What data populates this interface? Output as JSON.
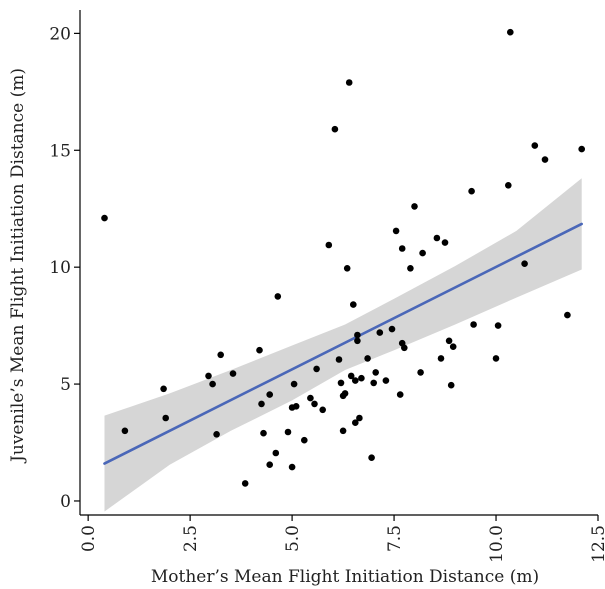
{
  "chart_data": {
    "type": "scatter",
    "xlabel": "Mother’s Mean Flight Initiation Distance (m)",
    "ylabel": "Juvenile’s Mean Flight Initiation Distance (m)",
    "xlim": [
      -0.2,
      12.5
    ],
    "ylim": [
      -0.6,
      21
    ],
    "x_ticks": [
      "0.0",
      "2.5",
      "5.0",
      "7.5",
      "10.0",
      "12.5"
    ],
    "y_ticks": [
      "0",
      "5",
      "10",
      "15",
      "20"
    ],
    "grid": false,
    "colors": {
      "points": "#000000",
      "fit_line": "#4a67b8",
      "ribbon": "#d6d6d6"
    },
    "points": [
      [
        0.4,
        12.1
      ],
      [
        0.9,
        3.0
      ],
      [
        1.85,
        4.8
      ],
      [
        1.9,
        3.55
      ],
      [
        2.95,
        5.35
      ],
      [
        3.05,
        5.0
      ],
      [
        3.15,
        2.85
      ],
      [
        3.25,
        6.25
      ],
      [
        3.55,
        5.45
      ],
      [
        3.85,
        0.75
      ],
      [
        4.2,
        6.45
      ],
      [
        4.25,
        4.15
      ],
      [
        4.3,
        2.9
      ],
      [
        4.45,
        4.55
      ],
      [
        4.45,
        1.55
      ],
      [
        4.6,
        2.05
      ],
      [
        4.65,
        8.75
      ],
      [
        4.9,
        2.95
      ],
      [
        5.0,
        4.0
      ],
      [
        5.0,
        1.45
      ],
      [
        5.05,
        5.0
      ],
      [
        5.1,
        4.05
      ],
      [
        5.3,
        2.6
      ],
      [
        5.45,
        4.4
      ],
      [
        5.55,
        4.15
      ],
      [
        5.6,
        5.65
      ],
      [
        5.75,
        3.9
      ],
      [
        5.9,
        10.95
      ],
      [
        6.05,
        15.9
      ],
      [
        6.15,
        6.05
      ],
      [
        6.2,
        5.05
      ],
      [
        6.25,
        3.0
      ],
      [
        6.25,
        4.5
      ],
      [
        6.3,
        4.6
      ],
      [
        6.35,
        9.95
      ],
      [
        6.4,
        17.9
      ],
      [
        6.45,
        5.35
      ],
      [
        6.5,
        8.4
      ],
      [
        6.55,
        5.15
      ],
      [
        6.55,
        3.35
      ],
      [
        6.6,
        7.1
      ],
      [
        6.6,
        6.85
      ],
      [
        6.65,
        3.55
      ],
      [
        6.7,
        5.25
      ],
      [
        6.85,
        6.1
      ],
      [
        6.95,
        1.85
      ],
      [
        7.0,
        5.05
      ],
      [
        7.05,
        5.5
      ],
      [
        7.15,
        7.2
      ],
      [
        7.3,
        5.15
      ],
      [
        7.45,
        7.35
      ],
      [
        7.55,
        11.55
      ],
      [
        7.65,
        4.55
      ],
      [
        7.7,
        10.8
      ],
      [
        7.7,
        6.75
      ],
      [
        7.75,
        6.55
      ],
      [
        7.9,
        9.95
      ],
      [
        8.0,
        12.6
      ],
      [
        8.15,
        5.5
      ],
      [
        8.2,
        10.6
      ],
      [
        8.55,
        11.25
      ],
      [
        8.65,
        6.1
      ],
      [
        8.75,
        11.05
      ],
      [
        8.85,
        6.85
      ],
      [
        8.9,
        4.95
      ],
      [
        8.95,
        6.6
      ],
      [
        9.4,
        13.25
      ],
      [
        9.45,
        7.55
      ],
      [
        10.0,
        6.1
      ],
      [
        10.05,
        7.5
      ],
      [
        10.3,
        13.5
      ],
      [
        10.35,
        20.05
      ],
      [
        10.7,
        10.15
      ],
      [
        10.95,
        15.2
      ],
      [
        11.2,
        14.6
      ],
      [
        11.75,
        7.95
      ],
      [
        12.1,
        15.05
      ]
    ],
    "fit_line": {
      "x": [
        0.4,
        12.1
      ],
      "y": [
        1.6,
        11.85
      ]
    },
    "confidence_band": {
      "x": [
        0.4,
        2.0,
        3.5,
        5.0,
        6.3,
        7.5,
        9.0,
        10.5,
        12.1
      ],
      "upper": [
        3.65,
        4.6,
        5.6,
        6.65,
        7.55,
        8.65,
        10.05,
        11.55,
        13.8
      ],
      "lower": [
        -0.45,
        1.55,
        3.0,
        4.3,
        5.6,
        6.45,
        7.55,
        8.7,
        9.9
      ]
    }
  }
}
